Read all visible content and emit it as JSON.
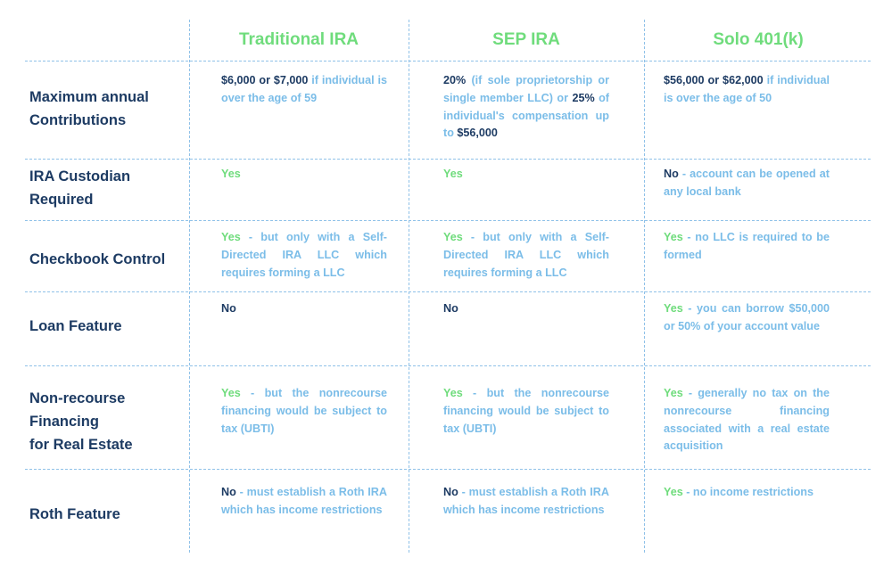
{
  "headers": [
    "Traditional IRA",
    "SEP IRA",
    "Solo 401(k)"
  ],
  "rows": [
    {
      "label_lines": [
        "Maximum annual",
        "Contributions"
      ],
      "traditional": {
        "lead": "$6,000 or $7,000",
        "rest": " if individual is over the age of 59"
      },
      "sep": {
        "lead": "20%",
        "rest": " (if sole proprietorship or single member LLC) or ",
        "lead2": "25%",
        "rest2": " of individual's compensation up to ",
        "lead3": "$56,000"
      },
      "solo": {
        "lead": "$56,000 or $62,000",
        "rest": " if individual is over the age of 50"
      }
    },
    {
      "label_lines": [
        "IRA Custodian",
        "Required"
      ],
      "traditional": {
        "lead": "Yes",
        "rest": ""
      },
      "sep": {
        "lead": "Yes",
        "rest": ""
      },
      "solo": {
        "lead": "No",
        "rest": " - account can be opened at any local bank"
      }
    },
    {
      "label_lines": [
        "Checkbook Control"
      ],
      "traditional": {
        "lead": "Yes",
        "rest": " - but only with a Self-Directed IRA LLC which requires forming a LLC"
      },
      "sep": {
        "lead": "Yes",
        "rest": " - but only with a Self-Directed IRA LLC which requires forming a LLC"
      },
      "solo": {
        "lead": "Yes",
        "rest": " - no LLC is required to be formed"
      }
    },
    {
      "label_lines": [
        "Loan Feature"
      ],
      "traditional": {
        "lead": "No",
        "rest": ""
      },
      "sep": {
        "lead": "No",
        "rest": ""
      },
      "solo": {
        "lead": "Yes",
        "rest": " - you can borrow $50,000 or 50% of your account value"
      }
    },
    {
      "label_lines": [
        "Non-recourse",
        "Financing",
        "for Real Estate"
      ],
      "traditional": {
        "lead": "Yes",
        "rest": " - but the nonrecourse financing would be subject to tax (UBTI)"
      },
      "sep": {
        "lead": "Yes",
        "rest": " - but the nonrecourse financing would be subject to tax (UBTI)"
      },
      "solo": {
        "lead": "Yes",
        "rest": " - generally no tax on the nonrecourse financing associated with a real estate acquisition"
      }
    },
    {
      "label_lines": [
        "Roth Feature"
      ],
      "traditional": {
        "lead": "No",
        "rest": " - must establish a Roth IRA which has income restrictions"
      },
      "sep": {
        "lead": "No",
        "rest": " - must establish a Roth IRA which has income restrictions"
      },
      "solo": {
        "lead": "Yes",
        "rest": " - no income restrictions"
      }
    }
  ],
  "colors": {
    "header_green": "#6fdc7c",
    "label_navy": "#1d3b63",
    "text_blue": "#7bbde8",
    "grid": "#8fc1e8"
  }
}
